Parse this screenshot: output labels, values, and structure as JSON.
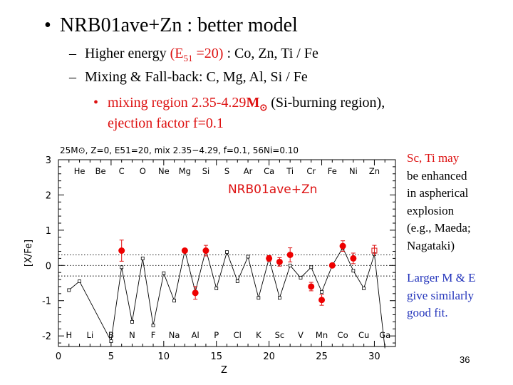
{
  "slide": {
    "title": "NRB01ave+Zn : better model",
    "sub1": {
      "pre": "Higher energy ",
      "energy": "(E",
      "sub": "51",
      "energy2": " =20)",
      "post": " : Co, Zn, Ti / Fe"
    },
    "sub2": "Mixing & Fall-back: C, Mg, Al, Si / Fe",
    "red_bullet": {
      "line1a": "mixing region 2.35-4.29",
      "msun": "M",
      "sun_symbol": "⊙",
      "line1b": " (Si-burning region),",
      "line2": "ejection factor f=0.1"
    },
    "side_note_red": [
      "Sc, Ti may",
      "be enhanced",
      "in aspherical",
      "explosion",
      "(e.g., Maeda;",
      "Nagataki)"
    ],
    "side_note_blue": [
      "Larger M & E",
      "give similarly",
      "good fit."
    ],
    "page_number": "36"
  },
  "chart_data": {
    "type": "scatter",
    "header": "25M⊙, Z=0, E51=20, mix 2.35−4.29, f=0.1, 56Ni=0.10",
    "inset_label": "NRB01ave+Zn",
    "xlabel": "Z",
    "ylabel": "[X/Fe]",
    "xlim": [
      0,
      32
    ],
    "ylim": [
      -2.3,
      3
    ],
    "xticks": [
      0,
      5,
      10,
      15,
      20,
      25,
      30
    ],
    "yticks": [
      -2,
      -1,
      0,
      1,
      2,
      3
    ],
    "dotted_lines": [
      0.3,
      0,
      -0.3
    ],
    "top_elements": [
      {
        "z": 2,
        "label": "He"
      },
      {
        "z": 4,
        "label": "Be"
      },
      {
        "z": 6,
        "label": "C"
      },
      {
        "z": 8,
        "label": "O"
      },
      {
        "z": 10,
        "label": "Ne"
      },
      {
        "z": 12,
        "label": "Mg"
      },
      {
        "z": 14,
        "label": "Si"
      },
      {
        "z": 16,
        "label": "S"
      },
      {
        "z": 18,
        "label": "Ar"
      },
      {
        "z": 20,
        "label": "Ca"
      },
      {
        "z": 22,
        "label": "Ti"
      },
      {
        "z": 24,
        "label": "Cr"
      },
      {
        "z": 26,
        "label": "Fe"
      },
      {
        "z": 28,
        "label": "Ni"
      },
      {
        "z": 30,
        "label": "Zn"
      }
    ],
    "bottom_elements": [
      {
        "z": 1,
        "label": "H"
      },
      {
        "z": 3,
        "label": "Li"
      },
      {
        "z": 5,
        "label": "B"
      },
      {
        "z": 7,
        "label": "N"
      },
      {
        "z": 9,
        "label": "F"
      },
      {
        "z": 11,
        "label": "Na"
      },
      {
        "z": 13,
        "label": "Al"
      },
      {
        "z": 15,
        "label": "P"
      },
      {
        "z": 17,
        "label": "Cl"
      },
      {
        "z": 19,
        "label": "K"
      },
      {
        "z": 21,
        "label": "Sc"
      },
      {
        "z": 23,
        "label": "V"
      },
      {
        "z": 25,
        "label": "Mn"
      },
      {
        "z": 27,
        "label": "Co"
      },
      {
        "z": 29,
        "label": "Cu"
      },
      {
        "z": 31,
        "label": "Ga"
      }
    ],
    "series": [
      {
        "kind": "model",
        "x": [
          1,
          2,
          5,
          6,
          7,
          8,
          9,
          10,
          11,
          12,
          13,
          14,
          15,
          16,
          17,
          18,
          19,
          20,
          21,
          22,
          23,
          24,
          25,
          26,
          27,
          28,
          29,
          30
        ],
        "y": [
          -0.7,
          -0.45,
          -2.15,
          -0.05,
          -1.6,
          0.2,
          -1.7,
          -0.22,
          -1.0,
          0.42,
          -0.75,
          0.45,
          -0.65,
          0.38,
          -0.45,
          0.25,
          -0.92,
          0.2,
          -0.92,
          0.0,
          -0.35,
          -0.05,
          -0.75,
          0.0,
          0.5,
          -0.15,
          -0.65,
          0.32
        ],
        "drop_at_end": [
          31,
          -2.35
        ]
      },
      {
        "kind": "observed",
        "points": [
          {
            "z": 6,
            "y": 0.42,
            "err": 0.3
          },
          {
            "z": 12,
            "y": 0.42,
            "err": 0.05
          },
          {
            "z": 13,
            "y": -0.78,
            "err": 0.18
          },
          {
            "z": 14,
            "y": 0.42,
            "err": 0.15
          },
          {
            "z": 20,
            "y": 0.2,
            "err": 0.08
          },
          {
            "z": 21,
            "y": 0.1,
            "err": 0.12
          },
          {
            "z": 22,
            "y": 0.3,
            "err": 0.2
          },
          {
            "z": 24,
            "y": -0.6,
            "err": 0.12
          },
          {
            "z": 25,
            "y": -0.98,
            "err": 0.15
          },
          {
            "z": 26,
            "y": 0.0,
            "err": 0.03
          },
          {
            "z": 27,
            "y": 0.55,
            "err": 0.15
          },
          {
            "z": 28,
            "y": 0.2,
            "err": 0.15
          }
        ]
      },
      {
        "kind": "upper_limit",
        "points": [
          {
            "z": 30,
            "y": 0.42,
            "err": 0.15
          }
        ]
      }
    ]
  }
}
